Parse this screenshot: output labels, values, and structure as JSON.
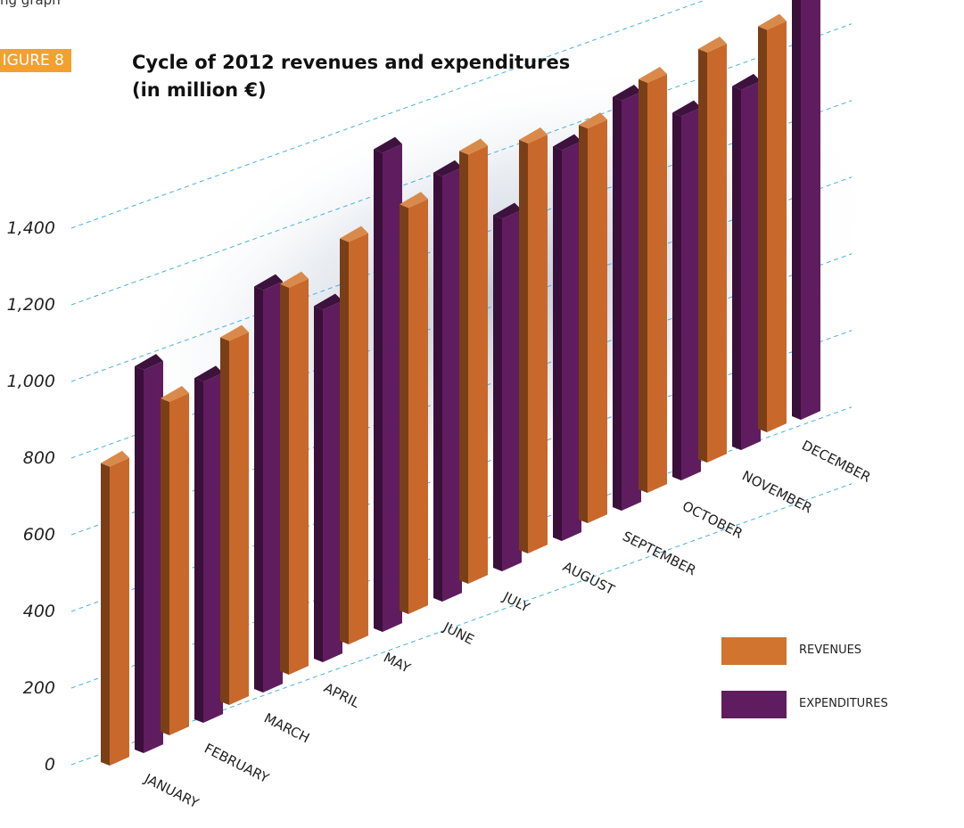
{
  "header": {
    "top_note": "ng graph",
    "figure_label": "IGURE 8",
    "title_line1": "Cycle of 2012 revenues and expenditures",
    "title_line2": "(in million €)"
  },
  "legend": {
    "revenues": "REVENUES",
    "expenditures": "EXPENDITURES"
  },
  "colors": {
    "revenue_front": "#c8692b",
    "revenue_side": "#7b3f17",
    "revenue_top": "#d98a4b",
    "expenditure_front": "#5f1d5f",
    "expenditure_side": "#3a0f3a",
    "expenditure_top": "#3d123d",
    "gridline": "#4ab0e0",
    "legend_revenues": "#d0742f",
    "legend_expenditures": "#5f1d5f"
  },
  "chart_data": {
    "type": "bar",
    "title": "Cycle of 2012 revenues and expenditures (in million €)",
    "categories": [
      "JANUARY",
      "FEBRUARY",
      "MARCH",
      "APRIL",
      "MAY",
      "JUNE",
      "JULY",
      "AUGUST",
      "SEPTEMBER",
      "OCTOBER",
      "NOVEMBER",
      "DECEMBER"
    ],
    "series": [
      {
        "name": "REVENUES",
        "values": [
          780,
          870,
          950,
          1010,
          1050,
          1060,
          1120,
          1070,
          1030,
          1070,
          1070,
          1050
        ]
      },
      {
        "name": "EXPENDITURES",
        "values": [
          1000,
          890,
          1050,
          920,
          1250,
          1110,
          920,
          1020,
          1070,
          950,
          940,
          1440
        ]
      }
    ],
    "yticks": [
      0,
      200,
      400,
      600,
      800,
      1000,
      1200,
      1400
    ],
    "ytick_labels": [
      "0",
      "200",
      "400",
      "600",
      "800",
      "1,000",
      "1,200",
      "1,400"
    ],
    "ylim": [
      0,
      1400
    ],
    "grid": true,
    "legend_position": "bottom-right"
  }
}
